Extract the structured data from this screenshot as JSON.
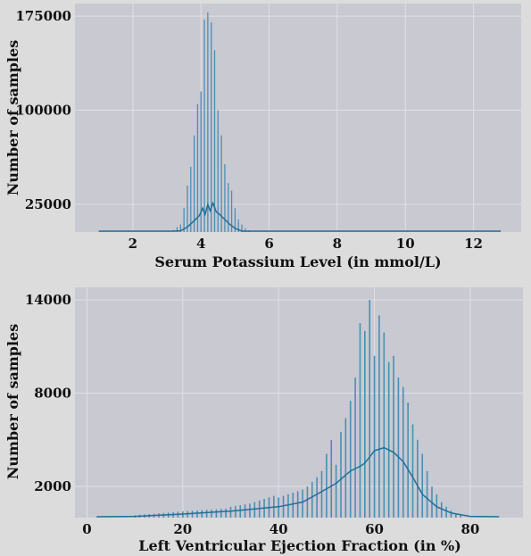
{
  "colors": {
    "page_background": "#dcdcdc",
    "plot_background": "#c9c9d2",
    "grid": "#e0e0e6",
    "bar": "#4a8fb5",
    "kde": "#1f6f99"
  },
  "chart_data": [
    {
      "type": "bar",
      "xlabel": "Serum Potassium Level (in mmol/L)",
      "ylabel": "Number of samples",
      "xlim": [
        0.3,
        13.4
      ],
      "ylim": [
        3000,
        185000
      ],
      "xticks": [
        2,
        4,
        6,
        8,
        10,
        12
      ],
      "yticks": [
        25000,
        100000,
        175000
      ],
      "grid": true,
      "bars": [
        {
          "x": 2.9,
          "y": 1500
        },
        {
          "x": 3.0,
          "y": 2000
        },
        {
          "x": 3.1,
          "y": 3000
        },
        {
          "x": 3.2,
          "y": 4000
        },
        {
          "x": 3.3,
          "y": 7000
        },
        {
          "x": 3.4,
          "y": 9000
        },
        {
          "x": 3.5,
          "y": 22000
        },
        {
          "x": 3.6,
          "y": 40000
        },
        {
          "x": 3.7,
          "y": 55000
        },
        {
          "x": 3.8,
          "y": 80000
        },
        {
          "x": 3.9,
          "y": 105000
        },
        {
          "x": 4.0,
          "y": 115000
        },
        {
          "x": 4.1,
          "y": 172000
        },
        {
          "x": 4.2,
          "y": 178000
        },
        {
          "x": 4.3,
          "y": 170000
        },
        {
          "x": 4.4,
          "y": 148000
        },
        {
          "x": 4.5,
          "y": 100000
        },
        {
          "x": 4.6,
          "y": 80000
        },
        {
          "x": 4.7,
          "y": 57000
        },
        {
          "x": 4.8,
          "y": 42000
        },
        {
          "x": 4.9,
          "y": 36000
        },
        {
          "x": 5.0,
          "y": 22000
        },
        {
          "x": 5.1,
          "y": 13000
        },
        {
          "x": 5.2,
          "y": 9000
        },
        {
          "x": 5.3,
          "y": 6000
        },
        {
          "x": 5.4,
          "y": 3500
        },
        {
          "x": 5.5,
          "y": 2500
        },
        {
          "x": 5.6,
          "y": 1500
        },
        {
          "x": 5.8,
          "y": 1000
        }
      ],
      "kde": [
        {
          "x": 1.0,
          "y": 100
        },
        {
          "x": 2.8,
          "y": 300
        },
        {
          "x": 3.1,
          "y": 1500
        },
        {
          "x": 3.4,
          "y": 4000
        },
        {
          "x": 3.6,
          "y": 7000
        },
        {
          "x": 3.8,
          "y": 12000
        },
        {
          "x": 3.95,
          "y": 16000
        },
        {
          "x": 4.05,
          "y": 22000
        },
        {
          "x": 4.12,
          "y": 17000
        },
        {
          "x": 4.2,
          "y": 25000
        },
        {
          "x": 4.27,
          "y": 20000
        },
        {
          "x": 4.35,
          "y": 26000
        },
        {
          "x": 4.45,
          "y": 19000
        },
        {
          "x": 4.55,
          "y": 17000
        },
        {
          "x": 4.7,
          "y": 13000
        },
        {
          "x": 4.85,
          "y": 9000
        },
        {
          "x": 5.0,
          "y": 6000
        },
        {
          "x": 5.2,
          "y": 3000
        },
        {
          "x": 5.5,
          "y": 1200
        },
        {
          "x": 6.0,
          "y": 300
        },
        {
          "x": 7.0,
          "y": 100
        },
        {
          "x": 9.0,
          "y": 50
        },
        {
          "x": 12.8,
          "y": 0
        }
      ]
    },
    {
      "type": "bar",
      "xlabel": "Left Ventricular Ejection Fraction (in %)",
      "ylabel": "Number of samples",
      "xlim": [
        -2.5,
        91
      ],
      "ylim": [
        0,
        14800
      ],
      "xticks": [
        0,
        20,
        40,
        60,
        80
      ],
      "yticks": [
        2000,
        8000,
        14000
      ],
      "grid": true,
      "bars": [
        {
          "x": 10,
          "y": 150
        },
        {
          "x": 11,
          "y": 180
        },
        {
          "x": 12,
          "y": 200
        },
        {
          "x": 13,
          "y": 230
        },
        {
          "x": 14,
          "y": 250
        },
        {
          "x": 15,
          "y": 280
        },
        {
          "x": 16,
          "y": 300
        },
        {
          "x": 17,
          "y": 320
        },
        {
          "x": 18,
          "y": 350
        },
        {
          "x": 19,
          "y": 380
        },
        {
          "x": 20,
          "y": 400
        },
        {
          "x": 21,
          "y": 420
        },
        {
          "x": 22,
          "y": 440
        },
        {
          "x": 23,
          "y": 460
        },
        {
          "x": 24,
          "y": 480
        },
        {
          "x": 25,
          "y": 500
        },
        {
          "x": 26,
          "y": 520
        },
        {
          "x": 27,
          "y": 540
        },
        {
          "x": 28,
          "y": 560
        },
        {
          "x": 29,
          "y": 580
        },
        {
          "x": 30,
          "y": 700
        },
        {
          "x": 31,
          "y": 750
        },
        {
          "x": 32,
          "y": 800
        },
        {
          "x": 33,
          "y": 850
        },
        {
          "x": 34,
          "y": 900
        },
        {
          "x": 35,
          "y": 1000
        },
        {
          "x": 36,
          "y": 1100
        },
        {
          "x": 37,
          "y": 1200
        },
        {
          "x": 38,
          "y": 1300
        },
        {
          "x": 39,
          "y": 1400
        },
        {
          "x": 40,
          "y": 1300
        },
        {
          "x": 41,
          "y": 1400
        },
        {
          "x": 42,
          "y": 1500
        },
        {
          "x": 43,
          "y": 1600
        },
        {
          "x": 44,
          "y": 1700
        },
        {
          "x": 45,
          "y": 1800
        },
        {
          "x": 46,
          "y": 2000
        },
        {
          "x": 47,
          "y": 2300
        },
        {
          "x": 48,
          "y": 2600
        },
        {
          "x": 49,
          "y": 3000
        },
        {
          "x": 50,
          "y": 4100
        },
        {
          "x": 51,
          "y": 5000
        },
        {
          "x": 52,
          "y": 3400
        },
        {
          "x": 53,
          "y": 5500
        },
        {
          "x": 54,
          "y": 6400
        },
        {
          "x": 55,
          "y": 7500
        },
        {
          "x": 56,
          "y": 9000
        },
        {
          "x": 57,
          "y": 12500
        },
        {
          "x": 58,
          "y": 12000
        },
        {
          "x": 59,
          "y": 14000
        },
        {
          "x": 60,
          "y": 10400
        },
        {
          "x": 61,
          "y": 13000
        },
        {
          "x": 62,
          "y": 11900
        },
        {
          "x": 63,
          "y": 10000
        },
        {
          "x": 64,
          "y": 10400
        },
        {
          "x": 65,
          "y": 9000
        },
        {
          "x": 66,
          "y": 8400
        },
        {
          "x": 67,
          "y": 7400
        },
        {
          "x": 68,
          "y": 6000
        },
        {
          "x": 69,
          "y": 5000
        },
        {
          "x": 70,
          "y": 4100
        },
        {
          "x": 71,
          "y": 3000
        },
        {
          "x": 72,
          "y": 2000
        },
        {
          "x": 73,
          "y": 1500
        },
        {
          "x": 74,
          "y": 1000
        },
        {
          "x": 75,
          "y": 700
        },
        {
          "x": 76,
          "y": 450
        },
        {
          "x": 77,
          "y": 250
        },
        {
          "x": 78,
          "y": 150
        }
      ],
      "kde": [
        {
          "x": 2,
          "y": 30
        },
        {
          "x": 10,
          "y": 80
        },
        {
          "x": 20,
          "y": 230
        },
        {
          "x": 30,
          "y": 420
        },
        {
          "x": 40,
          "y": 700
        },
        {
          "x": 45,
          "y": 1000
        },
        {
          "x": 48,
          "y": 1500
        },
        {
          "x": 52,
          "y": 2200
        },
        {
          "x": 55,
          "y": 3000
        },
        {
          "x": 57,
          "y": 3300
        },
        {
          "x": 58,
          "y": 3500
        },
        {
          "x": 60,
          "y": 4300
        },
        {
          "x": 62,
          "y": 4500
        },
        {
          "x": 64,
          "y": 4200
        },
        {
          "x": 66,
          "y": 3600
        },
        {
          "x": 68,
          "y": 2600
        },
        {
          "x": 70,
          "y": 1500
        },
        {
          "x": 73,
          "y": 700
        },
        {
          "x": 76,
          "y": 300
        },
        {
          "x": 80,
          "y": 80
        },
        {
          "x": 86,
          "y": 0
        }
      ]
    }
  ]
}
